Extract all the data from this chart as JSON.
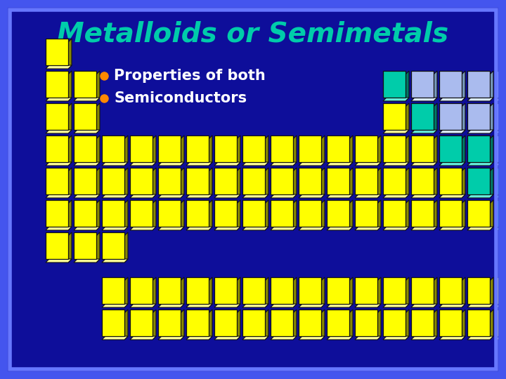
{
  "title": "Metalloids or Semimetals",
  "title_color": "#00CCAA",
  "bullet1": "Properties of both",
  "bullet2": "Semiconductors",
  "bullet_color": "#FFFFFF",
  "bullet_dot_color": "#FF8800",
  "bg_color": "#0E0E9A",
  "border_color1": "#4455EE",
  "border_color2": "#6677FF",
  "color_yellow": "#FFFF00",
  "color_teal": "#00CCAA",
  "color_lightblue": "#AABBEE",
  "color_face_y_dark": "#888800",
  "color_face_t_dark": "#007766",
  "color_face_l_dark": "#7799BB",
  "color_face_top": "#FFFFFF"
}
